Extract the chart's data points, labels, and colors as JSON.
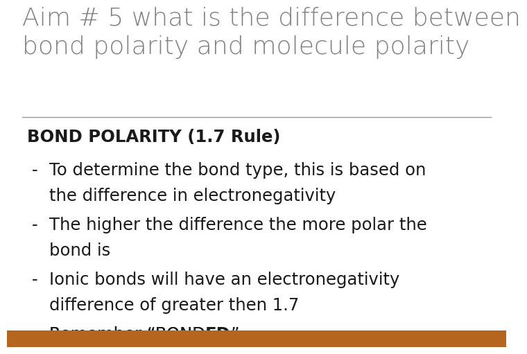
{
  "title_line1": "Aim # 5 what is the difference between",
  "title_line2": "bond polarity and molecule polarity",
  "title_color": "#808080",
  "title_fontsize": 26,
  "separator_color": "#999999",
  "body_fontsize": 17.5,
  "body_color": "#1a1a1a",
  "header_text": "BOND POLARITY (1.7 Rule)",
  "last_bullet_normal": "Remember “BOND",
  "last_bullet_bold_underline": "ED",
  "last_bullet_end": "”",
  "bottom_bar_color": "#b5651d",
  "background_color": "#ffffff"
}
